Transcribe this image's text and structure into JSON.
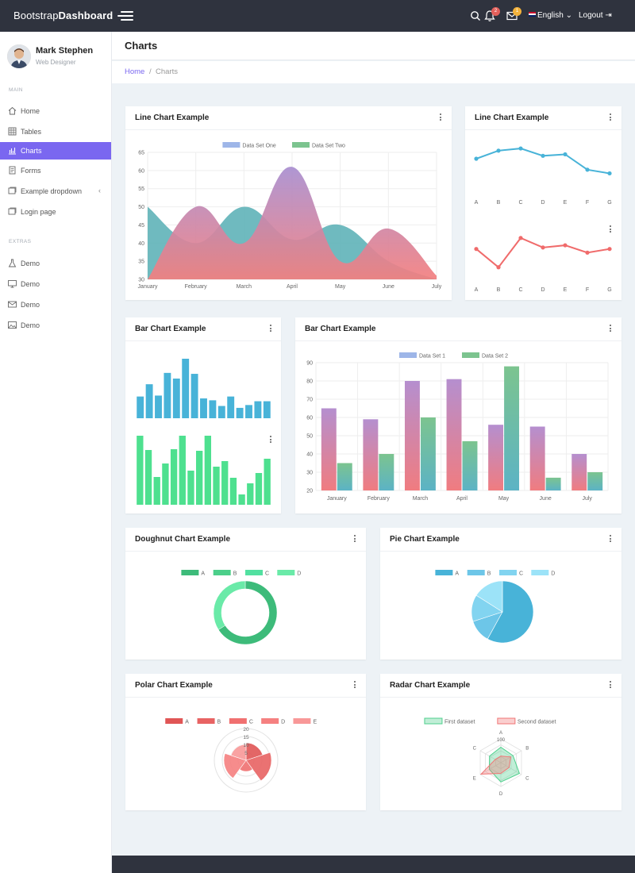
{
  "brand": {
    "light": "Bootstrap",
    "bold": "Dashboard"
  },
  "topbar": {
    "notif_count": "2",
    "mail_count": "1",
    "language": "English",
    "logout": "Logout"
  },
  "profile": {
    "name": "Mark Stephen",
    "role": "Web Designer"
  },
  "sidebar": {
    "main_title": "MAIN",
    "extras_title": "EXTRAS",
    "items": [
      {
        "label": "Home",
        "icon": "home-icon"
      },
      {
        "label": "Tables",
        "icon": "table-icon"
      },
      {
        "label": "Charts",
        "icon": "chart-icon"
      },
      {
        "label": "Forms",
        "icon": "form-icon"
      },
      {
        "label": "Example dropdown",
        "icon": "window-icon"
      },
      {
        "label": "Login page",
        "icon": "login-icon"
      }
    ],
    "extras": [
      {
        "label": "Demo",
        "icon": "flask-icon"
      },
      {
        "label": "Demo",
        "icon": "monitor-icon"
      },
      {
        "label": "Demo",
        "icon": "mail-icon"
      },
      {
        "label": "Demo",
        "icon": "picture-icon"
      }
    ]
  },
  "page": {
    "title": "Charts",
    "breadcrumb_home": "Home",
    "breadcrumb_current": "Charts"
  },
  "cards": {
    "line_main": "Line Chart Example",
    "line_small": "Line Chart Example",
    "bar_small": "Bar Chart Example",
    "bar_main": "Bar Chart Example",
    "doughnut": "Doughnut Chart Example",
    "pie": "Pie Chart Example",
    "polar": "Polar Chart Example",
    "radar": "Radar Chart Example"
  },
  "colors": {
    "accent": "#7a67f0",
    "navbar": "#2f333e",
    "blue": "#48b3d8",
    "green": "#4ecf8c",
    "red": "#f07677"
  },
  "chart_data": [
    {
      "type": "area",
      "categories": [
        "January",
        "February",
        "March",
        "April",
        "May",
        "June",
        "July"
      ],
      "ylim": [
        30,
        65
      ],
      "yticks": [
        30,
        35,
        40,
        45,
        50,
        55,
        60,
        65
      ],
      "legend": "top",
      "series": [
        {
          "name": "Data Set One",
          "values": [
            30,
            50,
            40,
            61,
            35,
            44,
            31
          ],
          "color": "#f37f7f"
        },
        {
          "name": "Data Set Two",
          "values": [
            50,
            40,
            50,
            41,
            45,
            35,
            30
          ],
          "color": "#5fb3b8"
        }
      ]
    },
    {
      "type": "line",
      "categories": [
        "A",
        "B",
        "C",
        "D",
        "E",
        "F",
        "G"
      ],
      "values": [
        59,
        70,
        73,
        63,
        65,
        44,
        39
      ],
      "color": "#48b3d8",
      "grid": false
    },
    {
      "type": "line",
      "categories": [
        "A",
        "B",
        "C",
        "D",
        "E",
        "F",
        "G"
      ],
      "values": [
        55,
        30,
        70,
        57,
        60,
        50,
        55
      ],
      "color": "#f06b6b",
      "grid": false
    },
    {
      "type": "bar",
      "values": [
        23,
        36,
        24,
        48,
        42,
        63,
        47,
        21,
        19,
        13,
        23,
        11,
        14,
        18,
        18
      ],
      "color": "#48b3d8"
    },
    {
      "type": "bar",
      "values": [
        87,
        69,
        35,
        52,
        70,
        87,
        43,
        68,
        87,
        48,
        55,
        34,
        13,
        27,
        40,
        58
      ],
      "color": "#4ee08f"
    },
    {
      "type": "bar",
      "categories": [
        "January",
        "February",
        "March",
        "April",
        "May",
        "June",
        "July"
      ],
      "ylim": [
        20,
        90
      ],
      "yticks": [
        20,
        30,
        40,
        50,
        60,
        70,
        80,
        90
      ],
      "legend": "top",
      "series": [
        {
          "name": "Data Set 1",
          "values": [
            65,
            59,
            80,
            81,
            56,
            55,
            40
          ],
          "color": "#f07c80"
        },
        {
          "name": "Data Set 2",
          "values": [
            35,
            40,
            60,
            47,
            88,
            27,
            30
          ],
          "color": "#5cb3c5"
        }
      ]
    },
    {
      "type": "doughnut",
      "categories": [
        "A",
        "B",
        "C",
        "D"
      ],
      "values": [
        66,
        0,
        0,
        34
      ],
      "colors": [
        "#3dbb7a",
        "#4ccf8a",
        "#52e0a0",
        "#6aeaa8"
      ],
      "legend": "top"
    },
    {
      "type": "pie",
      "categories": [
        "A",
        "B",
        "C",
        "D"
      ],
      "values": [
        58,
        12,
        14,
        16
      ],
      "colors": [
        "#48b3d8",
        "#6dc6e8",
        "#82d4f0",
        "#9ce3f8"
      ],
      "legend": "top"
    },
    {
      "type": "polar",
      "categories": [
        "A",
        "B",
        "C",
        "D",
        "E"
      ],
      "values": [
        11,
        16,
        7,
        14,
        10
      ],
      "rlim": [
        0,
        20
      ],
      "rticks": [
        5,
        10,
        15,
        20
      ],
      "colors": [
        "#e05555",
        "#e86363",
        "#f07070",
        "#f58080",
        "#f89898"
      ],
      "legend": "top"
    },
    {
      "type": "radar",
      "categories": [
        "A",
        "B",
        "C",
        "D",
        "E",
        "C"
      ],
      "rlim": [
        0,
        100
      ],
      "rtick_label": "100",
      "legend": "top",
      "series": [
        {
          "name": "First dataset",
          "values": [
            65,
            59,
            90,
            81,
            56,
            55
          ],
          "color": "#4ecf8c"
        },
        {
          "name": "Second dataset",
          "values": [
            28,
            48,
            40,
            45,
            96,
            27
          ],
          "color": "#f07676"
        }
      ]
    }
  ]
}
